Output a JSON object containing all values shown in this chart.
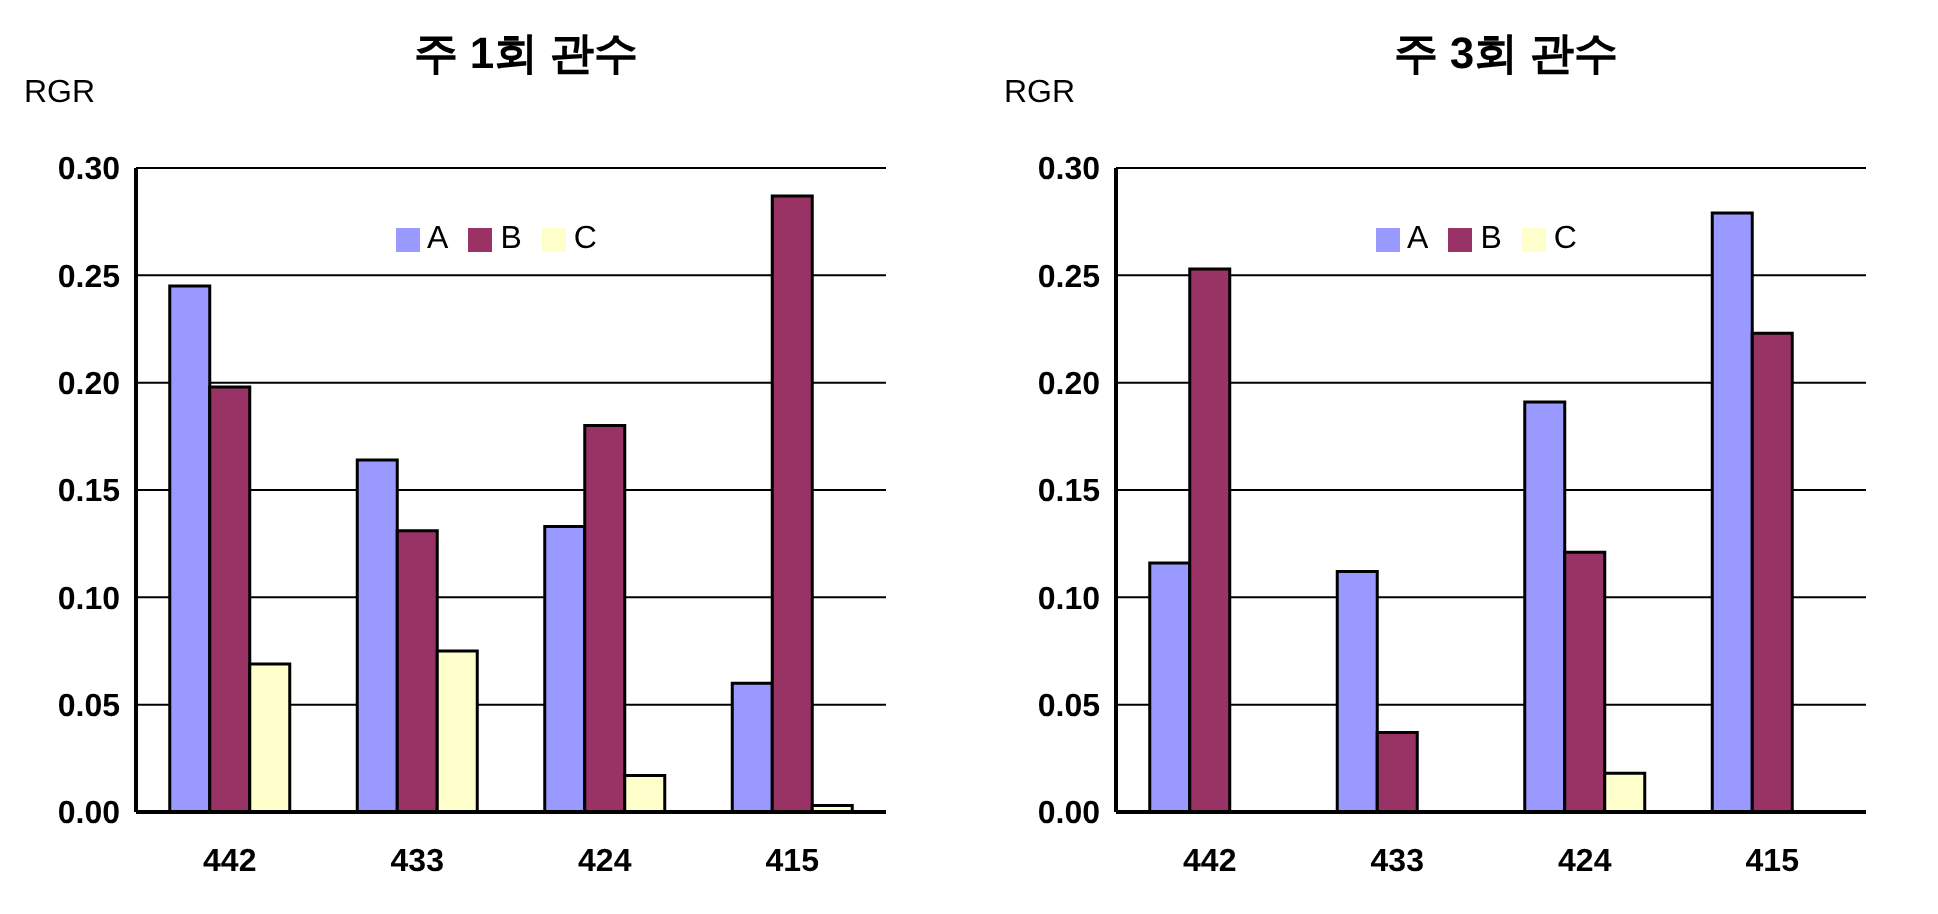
{
  "chart_data": [
    {
      "type": "bar",
      "title": "주 1회 관수",
      "ylabel": "RGR",
      "categories": [
        "442",
        "433",
        "424",
        "415"
      ],
      "series": [
        {
          "name": "A",
          "color": "#9999ff",
          "values": [
            0.245,
            0.164,
            0.133,
            0.06
          ]
        },
        {
          "name": "B",
          "color": "#993366",
          "values": [
            0.198,
            0.131,
            0.18,
            0.287
          ]
        },
        {
          "name": "C",
          "color": "#ffffcc",
          "values": [
            0.069,
            0.075,
            0.017,
            0.003
          ]
        }
      ],
      "ylim": [
        0,
        0.3
      ],
      "yticks": [
        {
          "value": 0,
          "label": "0.00"
        },
        {
          "value": 0.05,
          "label": "0.05"
        },
        {
          "value": 0.1,
          "label": "0.10"
        },
        {
          "value": 0.15,
          "label": "0.15"
        },
        {
          "value": 0.2,
          "label": "0.20"
        },
        {
          "value": 0.25,
          "label": "0.25"
        },
        {
          "value": 0.3,
          "label": "0.30"
        }
      ],
      "grid": "y",
      "legend": "top"
    },
    {
      "type": "bar",
      "title": "주 3회 관수",
      "ylabel": "RGR",
      "categories": [
        "442",
        "433",
        "424",
        "415"
      ],
      "series": [
        {
          "name": "A",
          "color": "#9999ff",
          "values": [
            0.116,
            0.112,
            0.191,
            0.279
          ]
        },
        {
          "name": "B",
          "color": "#993366",
          "values": [
            0.253,
            0.037,
            0.121,
            0.223
          ]
        },
        {
          "name": "C",
          "color": "#ffffcc",
          "values": [
            null,
            null,
            0.018,
            null
          ]
        }
      ],
      "ylim": [
        0,
        0.3
      ],
      "yticks": [
        {
          "value": 0,
          "label": "0.00"
        },
        {
          "value": 0.05,
          "label": "0.05"
        },
        {
          "value": 0.1,
          "label": "0.10"
        },
        {
          "value": 0.15,
          "label": "0.15"
        },
        {
          "value": 0.2,
          "label": "0.20"
        },
        {
          "value": 0.25,
          "label": "0.25"
        },
        {
          "value": 0.3,
          "label": "0.30"
        }
      ],
      "grid": "y",
      "legend": "top"
    }
  ]
}
